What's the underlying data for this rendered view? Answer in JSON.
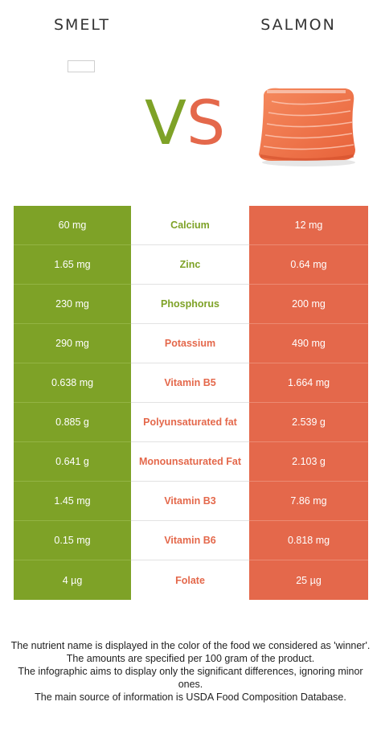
{
  "header": {
    "left_food": "SMELT",
    "right_food": "SALMON",
    "vs_v": "V",
    "vs_s": "S"
  },
  "colors": {
    "winner_left": "#7ea227",
    "winner_right": "#e4684b"
  },
  "rows": [
    {
      "left": "60 mg",
      "nutrient": "Calcium",
      "right": "12 mg",
      "winner": "left"
    },
    {
      "left": "1.65 mg",
      "nutrient": "Zinc",
      "right": "0.64 mg",
      "winner": "left"
    },
    {
      "left": "230 mg",
      "nutrient": "Phosphorus",
      "right": "200 mg",
      "winner": "left"
    },
    {
      "left": "290 mg",
      "nutrient": "Potassium",
      "right": "490 mg",
      "winner": "right"
    },
    {
      "left": "0.638 mg",
      "nutrient": "Vitamin B5",
      "right": "1.664 mg",
      "winner": "right"
    },
    {
      "left": "0.885 g",
      "nutrient": "Polyunsaturated fat",
      "right": "2.539 g",
      "winner": "right"
    },
    {
      "left": "0.641 g",
      "nutrient": "Monounsaturated Fat",
      "right": "2.103 g",
      "winner": "right"
    },
    {
      "left": "1.45 mg",
      "nutrient": "Vitamin B3",
      "right": "7.86 mg",
      "winner": "right"
    },
    {
      "left": "0.15 mg",
      "nutrient": "Vitamin B6",
      "right": "0.818 mg",
      "winner": "right"
    },
    {
      "left": "4 µg",
      "nutrient": "Folate",
      "right": "25 µg",
      "winner": "right"
    }
  ],
  "footer": {
    "line1": "The nutrient name is displayed in the color of the food we considered as 'winner'.",
    "line2": "The amounts are specified per 100 gram of the product.",
    "line3": "The infographic aims to display only the significant differences, ignoring minor ones.",
    "line4": "The main source of information is USDA Food Composition Database."
  }
}
